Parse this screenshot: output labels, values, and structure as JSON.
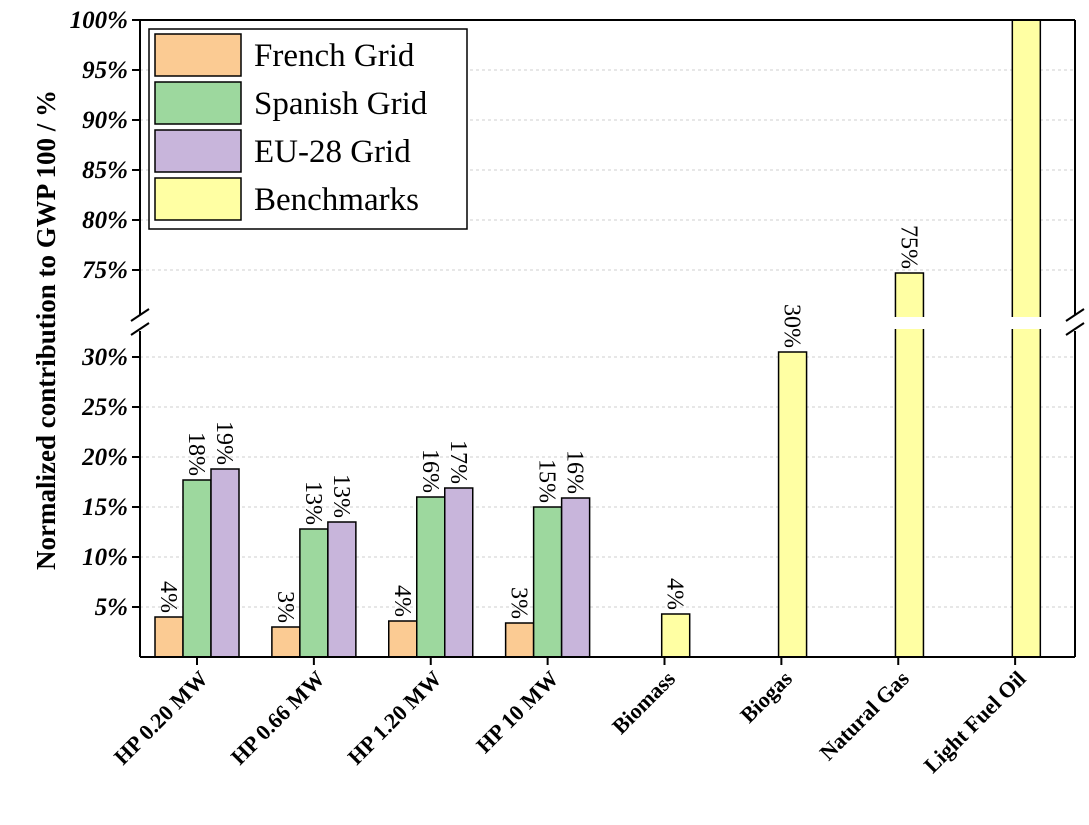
{
  "chart_data": {
    "type": "bar",
    "ylabel": "Normalized contribution to GWP 100 / %",
    "categories": [
      "HP 0.20 MW",
      "HP 0.66 MW",
      "HP 1.20 MW",
      "HP 10 MW",
      "Biomass",
      "Biogas",
      "Natural Gas",
      "Light Fuel Oil"
    ],
    "axis_break": {
      "lower_range": [
        0,
        32
      ],
      "upper_range": [
        71,
        100
      ]
    },
    "y_ticks_lower": [
      {
        "value": 5,
        "label": "5%"
      },
      {
        "value": 10,
        "label": "10%"
      },
      {
        "value": 15,
        "label": "15%"
      },
      {
        "value": 20,
        "label": "20%"
      },
      {
        "value": 25,
        "label": "25%"
      },
      {
        "value": 30,
        "label": "30%"
      }
    ],
    "y_ticks_upper": [
      {
        "value": 75,
        "label": "75%"
      },
      {
        "value": 80,
        "label": "80%"
      },
      {
        "value": 85,
        "label": "85%"
      },
      {
        "value": 90,
        "label": "90%"
      },
      {
        "value": 95,
        "label": "95%"
      },
      {
        "value": 100,
        "label": "100%"
      }
    ],
    "grid": true,
    "legend_position": "top-left",
    "series": [
      {
        "name": "French Grid",
        "color": "#FBCB93",
        "values": [
          4.0,
          3.0,
          3.6,
          3.4,
          null,
          null,
          null,
          null
        ],
        "labels": [
          "4%",
          "3%",
          "4%",
          "3%",
          "",
          "",
          "",
          ""
        ]
      },
      {
        "name": "Spanish Grid",
        "color": "#9DD89E",
        "values": [
          17.7,
          12.8,
          16.0,
          15.0,
          null,
          null,
          null,
          null
        ],
        "labels": [
          "18%",
          "13%",
          "16%",
          "15%",
          "",
          "",
          "",
          ""
        ]
      },
      {
        "name": "EU-28 Grid",
        "color": "#C8B5DB",
        "values": [
          18.8,
          13.5,
          16.9,
          15.9,
          null,
          null,
          null,
          null
        ],
        "labels": [
          "19%",
          "13%",
          "17%",
          "16%",
          "",
          "",
          "",
          ""
        ]
      },
      {
        "name": "Benchmarks",
        "color": "#FFFFA3",
        "values": [
          null,
          null,
          null,
          null,
          4.3,
          30.5,
          74.7,
          100
        ],
        "labels": [
          "",
          "",
          "",
          "",
          "4%",
          "30%",
          "75%",
          ""
        ]
      }
    ]
  }
}
